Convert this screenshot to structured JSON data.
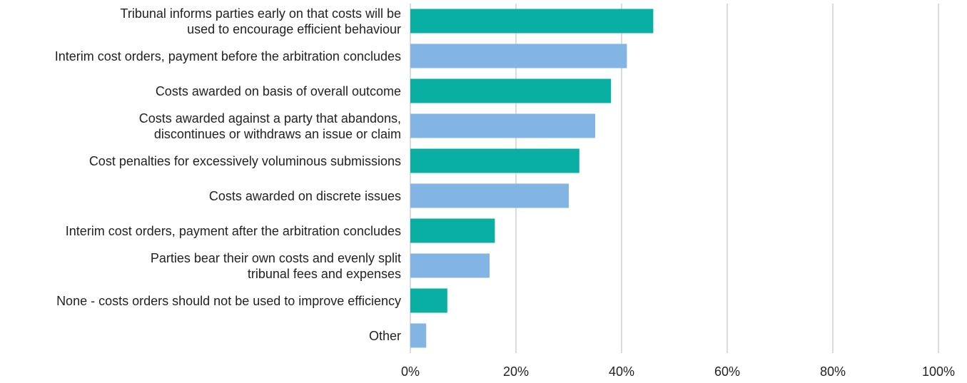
{
  "chart_data": {
    "type": "bar",
    "orientation": "horizontal",
    "categories": [
      "Tribunal informs parties early on that costs will be\nused to encourage efficient behaviour",
      "Interim cost orders, payment before the arbitration concludes",
      "Costs awarded on basis of overall outcome",
      "Costs awarded against a party that abandons,\ndiscontinues or withdraws an issue or claim",
      "Cost penalties for excessively voluminous submissions",
      "Costs awarded on discrete issues",
      "Interim cost orders, payment after the arbitration concludes",
      "Parties bear their own costs and evenly split\ntribunal fees and expenses",
      "None - costs orders should not be used to improve efficiency",
      "Other"
    ],
    "values": [
      46,
      41,
      38,
      35,
      32,
      30,
      16,
      15,
      7,
      3
    ],
    "colors": [
      "#0aafa4",
      "#82b5e3",
      "#0aafa4",
      "#82b5e3",
      "#0aafa4",
      "#82b5e3",
      "#0aafa4",
      "#82b5e3",
      "#0aafa4",
      "#82b5e3"
    ],
    "xlim": [
      0,
      100
    ],
    "xticks": [
      {
        "value": 0,
        "label": "0%"
      },
      {
        "value": 20,
        "label": "20%"
      },
      {
        "value": 40,
        "label": "40%"
      },
      {
        "value": 60,
        "label": "60%"
      },
      {
        "value": 80,
        "label": "80%"
      },
      {
        "value": 100,
        "label": "100%"
      }
    ],
    "grid": true
  }
}
